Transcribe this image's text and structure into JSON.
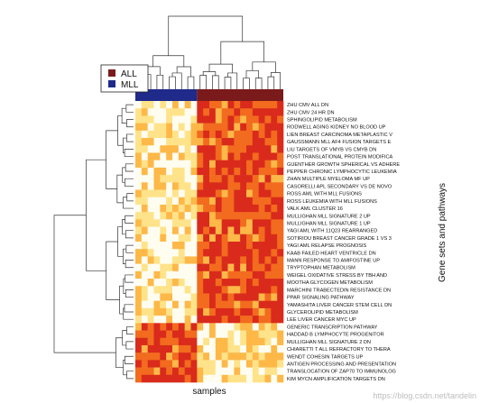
{
  "chart_data": {
    "type": "heatmap",
    "xlabel": "samples",
    "ylabel": "Gene sets and pathways",
    "legend": {
      "placement": "top-left",
      "entries": [
        {
          "label": "ALL",
          "color": "#7a1a1a"
        },
        {
          "label": "MLL",
          "color": "#1f2a8a"
        }
      ]
    },
    "sample_groups": [
      {
        "name": "MLL",
        "count": 10,
        "color": "#1f2a8a"
      },
      {
        "name": "ALL",
        "count": 14,
        "color": "#7a1a1a"
      }
    ],
    "color_scale": [
      "#fffdf0",
      "#ffe38a",
      "#fdb848",
      "#f26b1e",
      "#d92a1c"
    ],
    "rows": [
      "ZHU CMV ALL DN",
      "ZHU CMV 24 HR DN",
      "SPHINGOLIPID METABOLISM",
      "RODWELL AGING KIDNEY NO BLOOD UP",
      "LIEN BREAST CARCINOMA METAPLASTIC V",
      "GAUSSMANN MLL AF4 FUSION TARGETS E",
      "LIU TARGETS OF VMYB VS CMYB DN",
      "POST TRANSLATIONAL PROTEIN MODIFICA",
      "GUENTHER GROWTH SPHERICAL VS ADHERE",
      "PEPPER CHRONIC LYMPHOCYTIC LEUKEMIA",
      "ZHAN MULTIPLE MYELOMA MF UP",
      "CASORELLI APL SECONDARY VS DE NOVO",
      "ROSS AML WITH MLL FUSIONS",
      "ROSS LEUKEMIA WITH MLL FUSIONS",
      "VALK AML CLUSTER 16",
      "MULLIGHAN MLL SIGNATURE 2 UP",
      "MULLIGHAN MLL SIGNATURE 1 UP",
      "YAGI AML WITH 11Q23 REARRANGED",
      "SOTIRIOU BREAST CANCER GRADE 1 VS 3",
      "YAGI AML RELAPSE PROGNOSIS",
      "KAAB FAILED HEART VENTRICLE DN",
      "MANN RESPONSE TO AMIFOSTINE UP",
      "TRYPTOPHAN METABOLISM",
      "WEIGEL OXIDATIVE STRESS BY TBH AND",
      "MOOTHA GLYCOGEN METABOLISM",
      "MARCHINI TRABECTEDIN RESISTANCE DN",
      "PPAR SIGNALING PATHWAY",
      "YAMASHITA LIVER CANCER STEM CELL DN",
      "GLYCEROLIPID METABOLISM",
      "LEE LIVER CANCER MYC UP",
      "GENERIC TRANSCRIPTION PATHWAY",
      "HADDAD B LYMPHOCYTE PROGENITOR",
      "MULLIGHAN MLL SIGNATURE 2 DN",
      "CHIARETTI T ALL REFRACTORY TO THERA",
      "WENDT COHESIN TARGETS UP",
      "ANTIGEN PROCESSING AND PRESENTATION",
      "TRANSLOCATION OF ZAP70 TO IMMUNOLOG",
      "KIM MYCN AMPLIFICATION TARGETS DN"
    ]
  },
  "watermark": "https://blog.csdn.net/tandelin"
}
